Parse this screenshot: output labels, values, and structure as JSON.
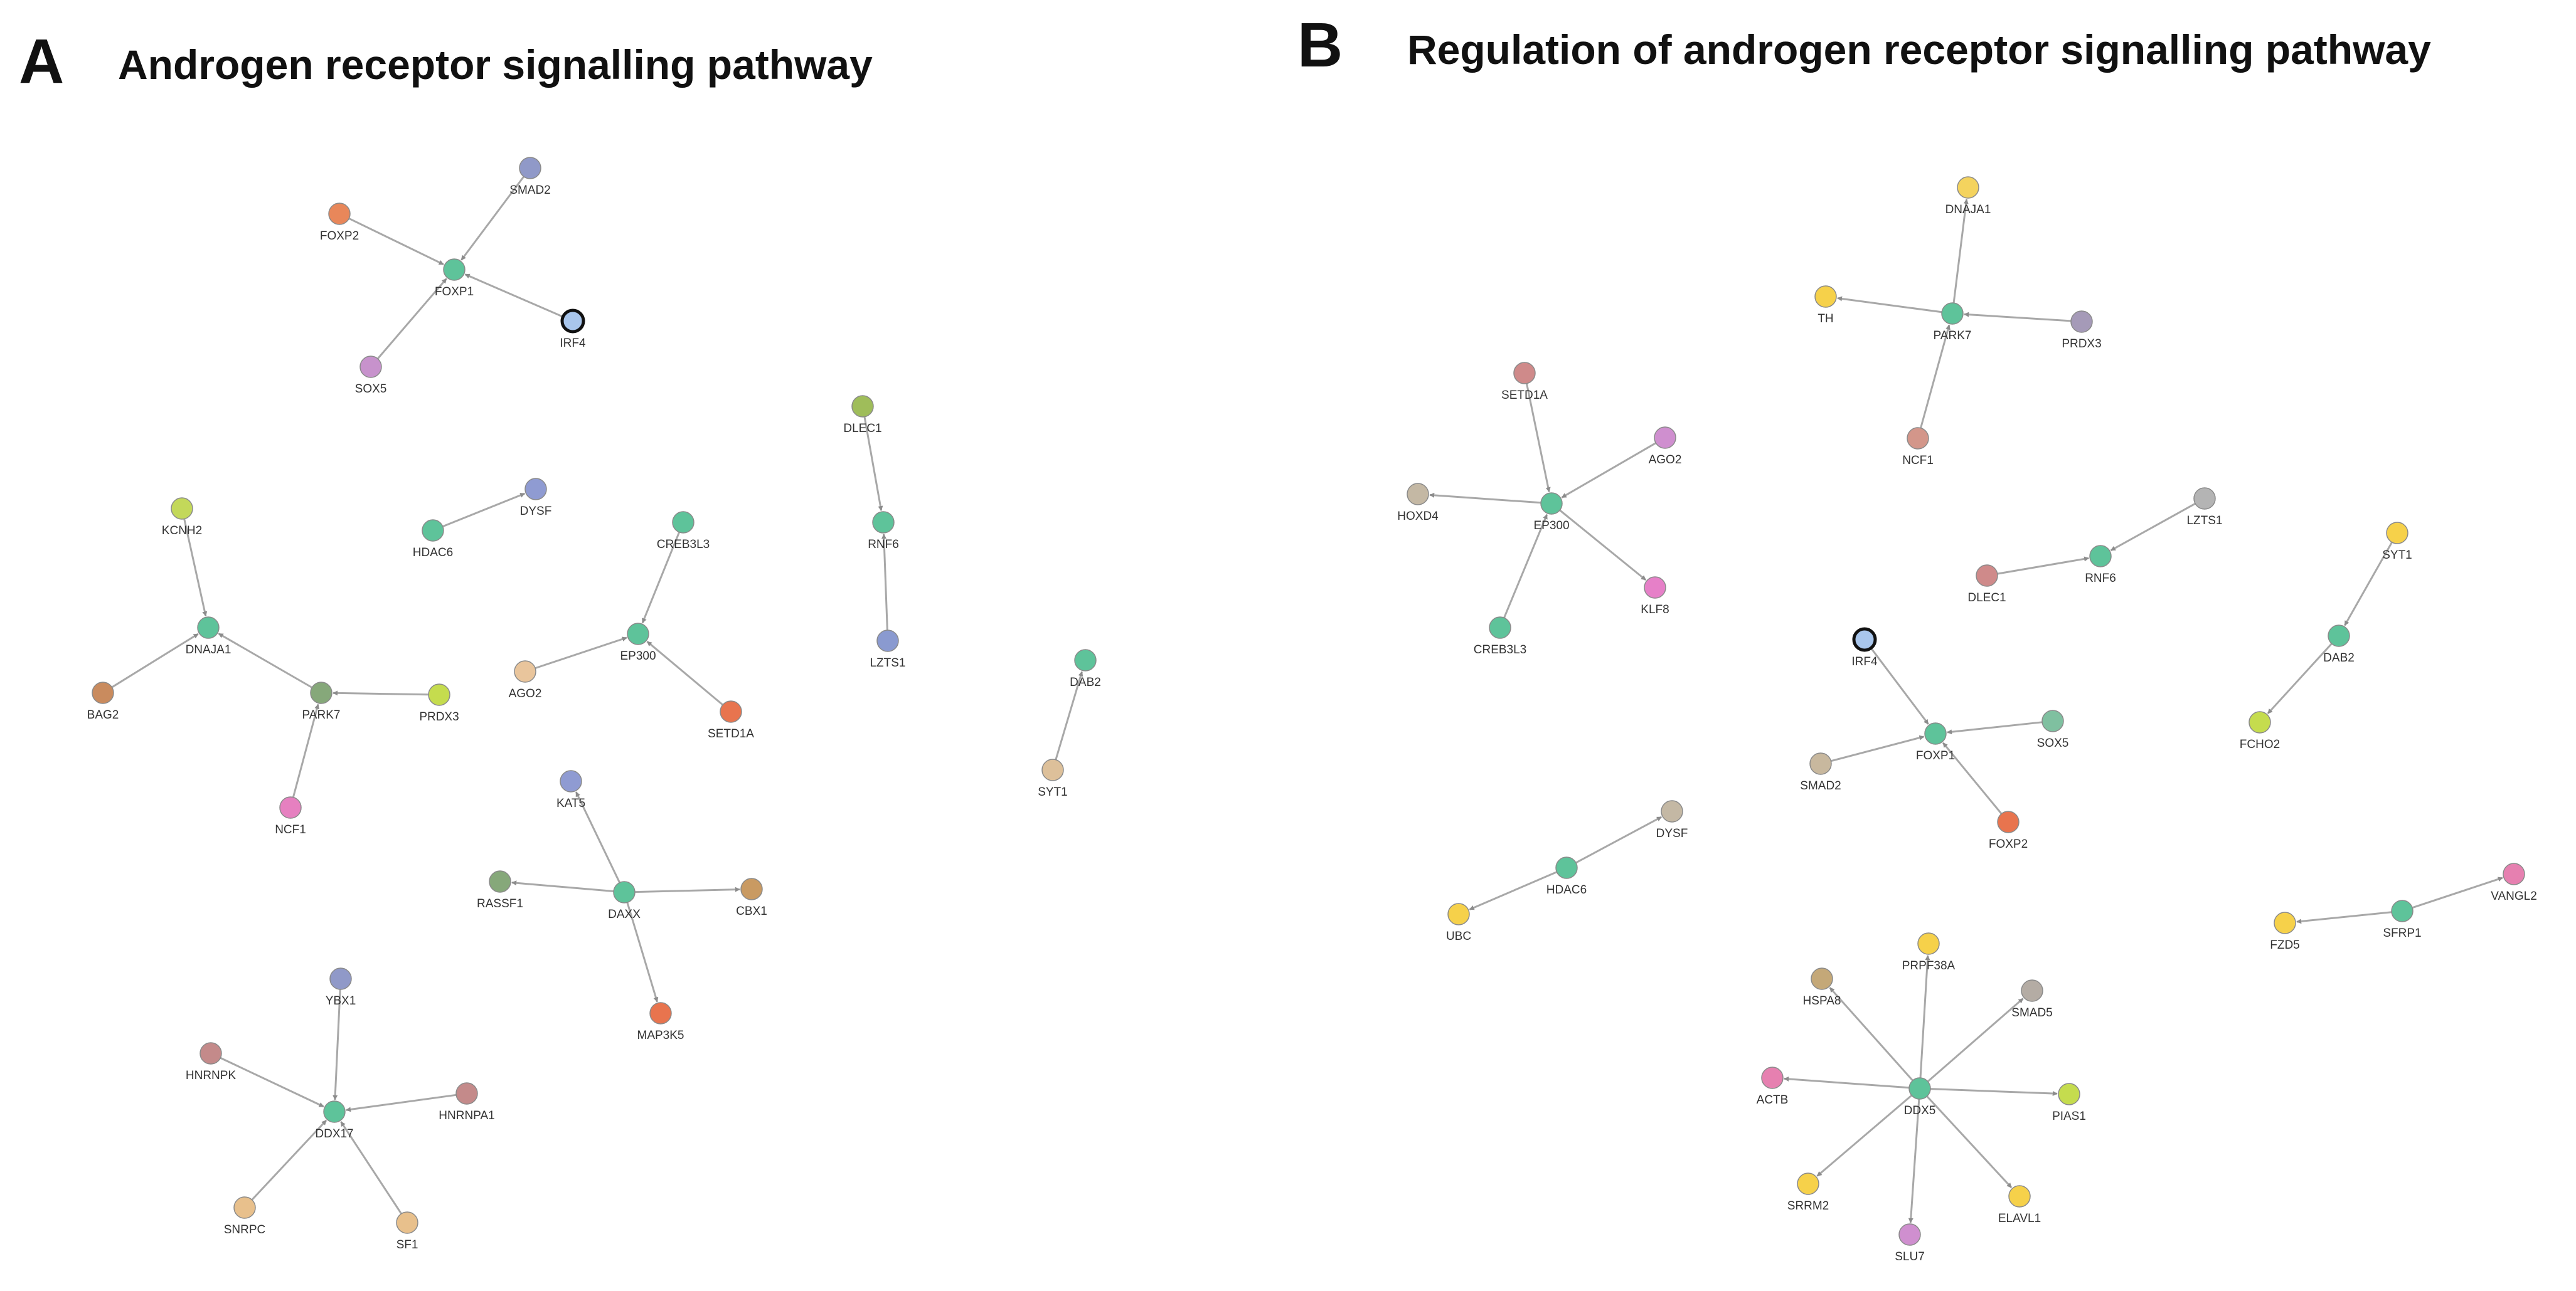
{
  "panels": [
    {
      "letter": "A",
      "title": "Androgen receptor signalling pathway",
      "nodes": [
        {
          "id": "SMAD2",
          "label": "SMAD2",
          "color": "#9099c8"
        },
        {
          "id": "FOXP2",
          "label": "FOXP2",
          "color": "#e8875a"
        },
        {
          "id": "FOXP1",
          "label": "FOXP1",
          "color": "#5ec39a"
        },
        {
          "id": "IRF4",
          "label": "IRF4",
          "color": "#a9c6ec",
          "outlined": true
        },
        {
          "id": "SOX5",
          "label": "SOX5",
          "color": "#c792cc"
        },
        {
          "id": "DLEC1",
          "label": "DLEC1",
          "color": "#9fbd5a"
        },
        {
          "id": "RNF6",
          "label": "RNF6",
          "color": "#5ec39a"
        },
        {
          "id": "LZTS1",
          "label": "LZTS1",
          "color": "#8a9ad0"
        },
        {
          "id": "KCNH2",
          "label": "KCNH2",
          "color": "#c3d85a"
        },
        {
          "id": "HDAC6",
          "label": "HDAC6",
          "color": "#5ec39a"
        },
        {
          "id": "DYSF",
          "label": "DYSF",
          "color": "#8f9bd2"
        },
        {
          "id": "CREB3L3",
          "label": "CREB3L3",
          "color": "#5ec39a"
        },
        {
          "id": "DNAJA1",
          "label": "DNAJA1",
          "color": "#5ec39a"
        },
        {
          "id": "EP300",
          "label": "EP300",
          "color": "#5ec39a"
        },
        {
          "id": "AGO2",
          "label": "AGO2",
          "color": "#e9c59c"
        },
        {
          "id": "BAG2",
          "label": "BAG2",
          "color": "#c98b5e"
        },
        {
          "id": "PARK7",
          "label": "PARK7",
          "color": "#86a87a"
        },
        {
          "id": "PRDX3",
          "label": "PRDX3",
          "color": "#c5dc4e"
        },
        {
          "id": "SETD1A",
          "label": "SETD1A",
          "color": "#e8744e"
        },
        {
          "id": "DAB2",
          "label": "DAB2",
          "color": "#5ec39a"
        },
        {
          "id": "NCF1",
          "label": "NCF1",
          "color": "#e680c0"
        },
        {
          "id": "KAT5",
          "label": "KAT5",
          "color": "#8f9bd2"
        },
        {
          "id": "SYT1",
          "label": "SYT1",
          "color": "#ddc09a"
        },
        {
          "id": "RASSF1",
          "label": "RASSF1",
          "color": "#86a87a"
        },
        {
          "id": "DAXX",
          "label": "DAXX",
          "color": "#5ec39a"
        },
        {
          "id": "CBX1",
          "label": "CBX1",
          "color": "#c99a62"
        },
        {
          "id": "MAP3K5",
          "label": "MAP3K5",
          "color": "#e8744e"
        },
        {
          "id": "YBX1",
          "label": "YBX1",
          "color": "#9099c8"
        },
        {
          "id": "HNRNPK",
          "label": "HNRNPK",
          "color": "#c48a8a"
        },
        {
          "id": "HNRNPA1",
          "label": "HNRNPA1",
          "color": "#c48a8a"
        },
        {
          "id": "DDX17",
          "label": "DDX17",
          "color": "#5ec39a"
        },
        {
          "id": "SNRPC",
          "label": "SNRPC",
          "color": "#e8c08c"
        },
        {
          "id": "SF1",
          "label": "SF1",
          "color": "#e8c08c"
        }
      ],
      "edges": [
        [
          "FOXP2",
          "FOXP1"
        ],
        [
          "SMAD2",
          "FOXP1"
        ],
        [
          "IRF4",
          "FOXP1"
        ],
        [
          "SOX5",
          "FOXP1"
        ],
        [
          "DLEC1",
          "RNF6"
        ],
        [
          "LZTS1",
          "RNF6"
        ],
        [
          "HDAC6",
          "DYSF"
        ],
        [
          "KCNH2",
          "DNAJA1"
        ],
        [
          "BAG2",
          "DNAJA1"
        ],
        [
          "PARK7",
          "DNAJA1"
        ],
        [
          "PRDX3",
          "PARK7"
        ],
        [
          "NCF1",
          "PARK7"
        ],
        [
          "CREB3L3",
          "EP300"
        ],
        [
          "AGO2",
          "EP300"
        ],
        [
          "SETD1A",
          "EP300"
        ],
        [
          "SYT1",
          "DAB2"
        ],
        [
          "DAXX",
          "KAT5"
        ],
        [
          "DAXX",
          "RASSF1"
        ],
        [
          "DAXX",
          "CBX1"
        ],
        [
          "DAXX",
          "MAP3K5"
        ],
        [
          "YBX1",
          "DDX17"
        ],
        [
          "HNRNPK",
          "DDX17"
        ],
        [
          "HNRNPA1",
          "DDX17"
        ],
        [
          "SNRPC",
          "DDX17"
        ],
        [
          "SF1",
          "DDX17"
        ]
      ]
    },
    {
      "letter": "B",
      "title": "Regulation of androgen receptor signalling pathway",
      "nodes": [
        {
          "id": "DNAJA1",
          "label": "DNAJA1",
          "color": "#f4d35e"
        },
        {
          "id": "TH",
          "label": "TH",
          "color": "#f6d14a"
        },
        {
          "id": "PARK7",
          "label": "PARK7",
          "color": "#5ec39a"
        },
        {
          "id": "PRDX3",
          "label": "PRDX3",
          "color": "#a59ab8"
        },
        {
          "id": "NCF1",
          "label": "NCF1",
          "color": "#d3968a"
        },
        {
          "id": "SETD1A",
          "label": "SETD1A",
          "color": "#cf8a8a"
        },
        {
          "id": "AGO2",
          "label": "AGO2",
          "color": "#cf8fcf"
        },
        {
          "id": "HOXD4",
          "label": "HOXD4",
          "color": "#c4b8a4"
        },
        {
          "id": "EP300",
          "label": "EP300",
          "color": "#5ec39a"
        },
        {
          "id": "KLF8",
          "label": "KLF8",
          "color": "#e680c8"
        },
        {
          "id": "CREB3L3",
          "label": "CREB3L3",
          "color": "#5ec39a"
        },
        {
          "id": "LZTS1",
          "label": "LZTS1",
          "color": "#b4b4b4"
        },
        {
          "id": "RNF6",
          "label": "RNF6",
          "color": "#5ec39a"
        },
        {
          "id": "DLEC1",
          "label": "DLEC1",
          "color": "#cf8a8a"
        },
        {
          "id": "SYT1",
          "label": "SYT1",
          "color": "#f6d14a"
        },
        {
          "id": "DAB2",
          "label": "DAB2",
          "color": "#5ec39a"
        },
        {
          "id": "FCHO2",
          "label": "FCHO2",
          "color": "#c5dc4e"
        },
        {
          "id": "IRF4",
          "label": "IRF4",
          "color": "#a9c6ec",
          "outlined": true
        },
        {
          "id": "FOXP1",
          "label": "FOXP1",
          "color": "#5ec39a"
        },
        {
          "id": "SOX5",
          "label": "SOX5",
          "color": "#7fc0a0"
        },
        {
          "id": "SMAD2",
          "label": "SMAD2",
          "color": "#c8b89e"
        },
        {
          "id": "FOXP2",
          "label": "FOXP2",
          "color": "#e8744e"
        },
        {
          "id": "DYSF",
          "label": "DYSF",
          "color": "#c4b8a4"
        },
        {
          "id": "HDAC6",
          "label": "HDAC6",
          "color": "#5ec39a"
        },
        {
          "id": "UBC",
          "label": "UBC",
          "color": "#f6d14a"
        },
        {
          "id": "VANGL2",
          "label": "VANGL2",
          "color": "#e680b0"
        },
        {
          "id": "SFRP1",
          "label": "SFRP1",
          "color": "#5ec39a"
        },
        {
          "id": "FZD5",
          "label": "FZD5",
          "color": "#f6d14a"
        },
        {
          "id": "PRPF38A",
          "label": "PRPF38A",
          "color": "#f6d14a"
        },
        {
          "id": "HSPA8",
          "label": "HSPA8",
          "color": "#c4a878"
        },
        {
          "id": "SMAD5",
          "label": "SMAD5",
          "color": "#b4aca4"
        },
        {
          "id": "ACTB",
          "label": "ACTB",
          "color": "#e680b0"
        },
        {
          "id": "DDX5",
          "label": "DDX5",
          "color": "#5ec39a"
        },
        {
          "id": "PIAS1",
          "label": "PIAS1",
          "color": "#c5dc4e"
        },
        {
          "id": "SRRM2",
          "label": "SRRM2",
          "color": "#f6d14a"
        },
        {
          "id": "ELAVL1",
          "label": "ELAVL1",
          "color": "#f6d14a"
        },
        {
          "id": "SLU7",
          "label": "SLU7",
          "color": "#cf8fcf"
        }
      ],
      "edges": [
        [
          "PRDX3",
          "PARK7"
        ],
        [
          "NCF1",
          "PARK7"
        ],
        [
          "PARK7",
          "TH"
        ],
        [
          "PARK7",
          "DNAJA1"
        ],
        [
          "SETD1A",
          "EP300"
        ],
        [
          "AGO2",
          "EP300"
        ],
        [
          "EP300",
          "HOXD4"
        ],
        [
          "EP300",
          "KLF8"
        ],
        [
          "CREB3L3",
          "EP300"
        ],
        [
          "LZTS1",
          "RNF6"
        ],
        [
          "DLEC1",
          "RNF6"
        ],
        [
          "SYT1",
          "DAB2"
        ],
        [
          "DAB2",
          "FCHO2"
        ],
        [
          "IRF4",
          "FOXP1"
        ],
        [
          "SOX5",
          "FOXP1"
        ],
        [
          "SMAD2",
          "FOXP1"
        ],
        [
          "FOXP2",
          "FOXP1"
        ],
        [
          "HDAC6",
          "DYSF"
        ],
        [
          "HDAC6",
          "UBC"
        ],
        [
          "SFRP1",
          "VANGL2"
        ],
        [
          "SFRP1",
          "FZD5"
        ],
        [
          "DDX5",
          "PRPF38A"
        ],
        [
          "DDX5",
          "HSPA8"
        ],
        [
          "DDX5",
          "SMAD5"
        ],
        [
          "DDX5",
          "ACTB"
        ],
        [
          "DDX5",
          "PIAS1"
        ],
        [
          "DDX5",
          "SRRM2"
        ],
        [
          "DDX5",
          "ELAVL1"
        ],
        [
          "DDX5",
          "SLU7"
        ]
      ]
    }
  ]
}
